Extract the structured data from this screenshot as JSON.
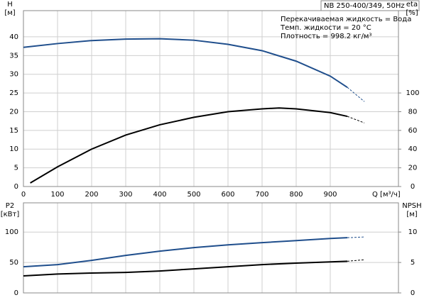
{
  "chart_data": [
    {
      "type": "line",
      "title": "NB 250-400/349, 50Hz",
      "ylabel": "H",
      "yunit": "[м]",
      "y2label": "eta",
      "y2unit": "[%]",
      "xlabel": "Q [м³/ч]",
      "annotations": [
        "Перекачиваемая жидкость = Вода",
        "Темп. жидкости = 20 °C",
        "Плотность = 998.2 кг/м³"
      ],
      "xlim": [
        0,
        1100
      ],
      "xticks": [
        0,
        100,
        200,
        300,
        400,
        500,
        600,
        700,
        800,
        900
      ],
      "ylim": [
        0,
        47
      ],
      "yticks": [
        0,
        5,
        10,
        15,
        20,
        25,
        30,
        35,
        40
      ],
      "y2lim": [
        0,
        188
      ],
      "y2ticks": [
        0,
        20,
        40,
        60,
        80,
        100
      ],
      "grid": true,
      "series": [
        {
          "color": "#1f4e8c",
          "style": "solid",
          "x": [
            0,
            100,
            200,
            300,
            400,
            500,
            600,
            700,
            800,
            900,
            950
          ],
          "values": [
            37.2,
            38.2,
            39,
            39.4,
            39.5,
            39.1,
            38,
            36.3,
            33.5,
            29.5,
            26.5
          ]
        },
        {
          "color": "#1f4e8c",
          "style": "dashed",
          "x": [
            950,
            1000
          ],
          "values": [
            26.5,
            22.7
          ]
        },
        {
          "color": "#000000",
          "style": "solid",
          "axis": "y2",
          "x": [
            20,
            100,
            200,
            300,
            400,
            500,
            600,
            700,
            750,
            800,
            900,
            950
          ],
          "values": [
            3.8,
            21,
            40,
            55,
            66,
            74,
            80,
            83,
            84,
            83,
            79,
            75
          ]
        },
        {
          "color": "#000000",
          "style": "dashed",
          "axis": "y2",
          "x": [
            950,
            1000
          ],
          "values": [
            75,
            68
          ]
        }
      ]
    },
    {
      "type": "line",
      "ylabel": "P2",
      "yunit": "[кВт]",
      "y2label": "NPSH",
      "y2unit": "[м]",
      "xlim": [
        0,
        1100
      ],
      "ylim": [
        0,
        148
      ],
      "yticks": [
        0,
        50,
        100
      ],
      "y2lim": [
        0,
        14.8
      ],
      "y2ticks": [
        0,
        5,
        10
      ],
      "grid": true,
      "series": [
        {
          "color": "#1f4e8c",
          "style": "solid",
          "x": [
            0,
            100,
            200,
            300,
            400,
            500,
            600,
            700,
            800,
            900,
            950
          ],
          "values": [
            43,
            46.5,
            53.5,
            61.6,
            68.6,
            74.4,
            79,
            82.6,
            86,
            89.5,
            90.7
          ]
        },
        {
          "color": "#1f4e8c",
          "style": "dashed",
          "x": [
            950,
            1000
          ],
          "values": [
            90.7,
            91.9
          ]
        },
        {
          "color": "#000000",
          "style": "solid",
          "axis": "y2",
          "x": [
            0,
            100,
            200,
            300,
            400,
            500,
            600,
            700,
            800,
            900,
            950
          ],
          "values": [
            2.8,
            3.1,
            3.26,
            3.37,
            3.6,
            3.95,
            4.3,
            4.65,
            4.9,
            5.1,
            5.2
          ]
        },
        {
          "color": "#000000",
          "style": "dashed",
          "axis": "y2",
          "x": [
            950,
            1000
          ],
          "values": [
            5.2,
            5.45
          ]
        }
      ]
    }
  ]
}
